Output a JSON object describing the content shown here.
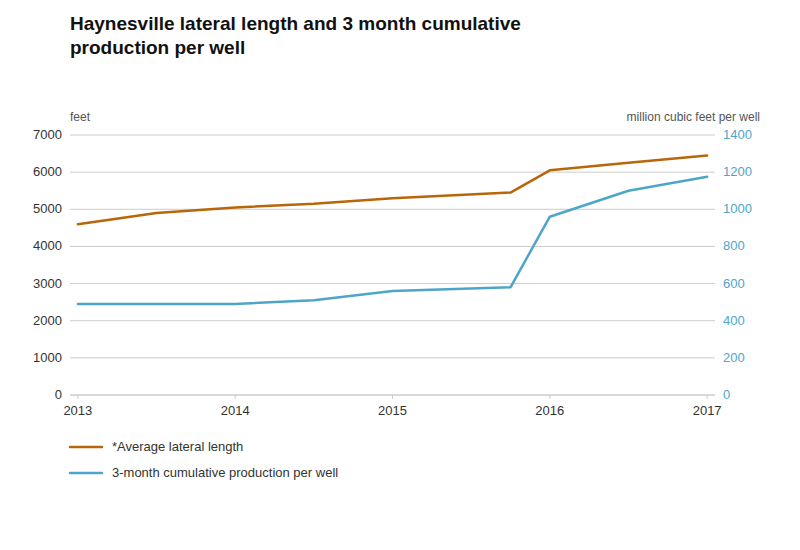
{
  "chart_data": {
    "type": "line",
    "title": "Haynesville lateral length and 3 month cumulative\nproduction per well",
    "ylabel": "feet",
    "y2label": "million cubic feet per well",
    "x": [
      2013,
      2013.5,
      2014,
      2014.5,
      2015,
      2015.75,
      2016,
      2016.5,
      2017
    ],
    "series": [
      {
        "name": "*Average lateral length",
        "color": "#b8660a",
        "values": [
          4600,
          4900,
          5050,
          5150,
          5300,
          5450,
          6050,
          6250,
          6450
        ]
      },
      {
        "name": "3-month cumulative production per well",
        "color": "#4da6c8",
        "axis": "y2",
        "values": [
          490,
          490,
          490,
          510,
          560,
          580,
          960,
          1100,
          1175
        ]
      }
    ],
    "xlim": [
      2012.95,
      2017.05
    ],
    "xticks": [
      2013,
      2014,
      2015,
      2016,
      2017
    ],
    "ylim": [
      0,
      7000
    ],
    "yticks": [
      0,
      1000,
      2000,
      3000,
      4000,
      5000,
      6000,
      7000
    ],
    "y2lim": [
      0,
      1400
    ],
    "y2ticks": [
      0,
      200,
      400,
      600,
      800,
      1000,
      1200,
      1400
    ],
    "grid": true,
    "legend": "bottom"
  }
}
